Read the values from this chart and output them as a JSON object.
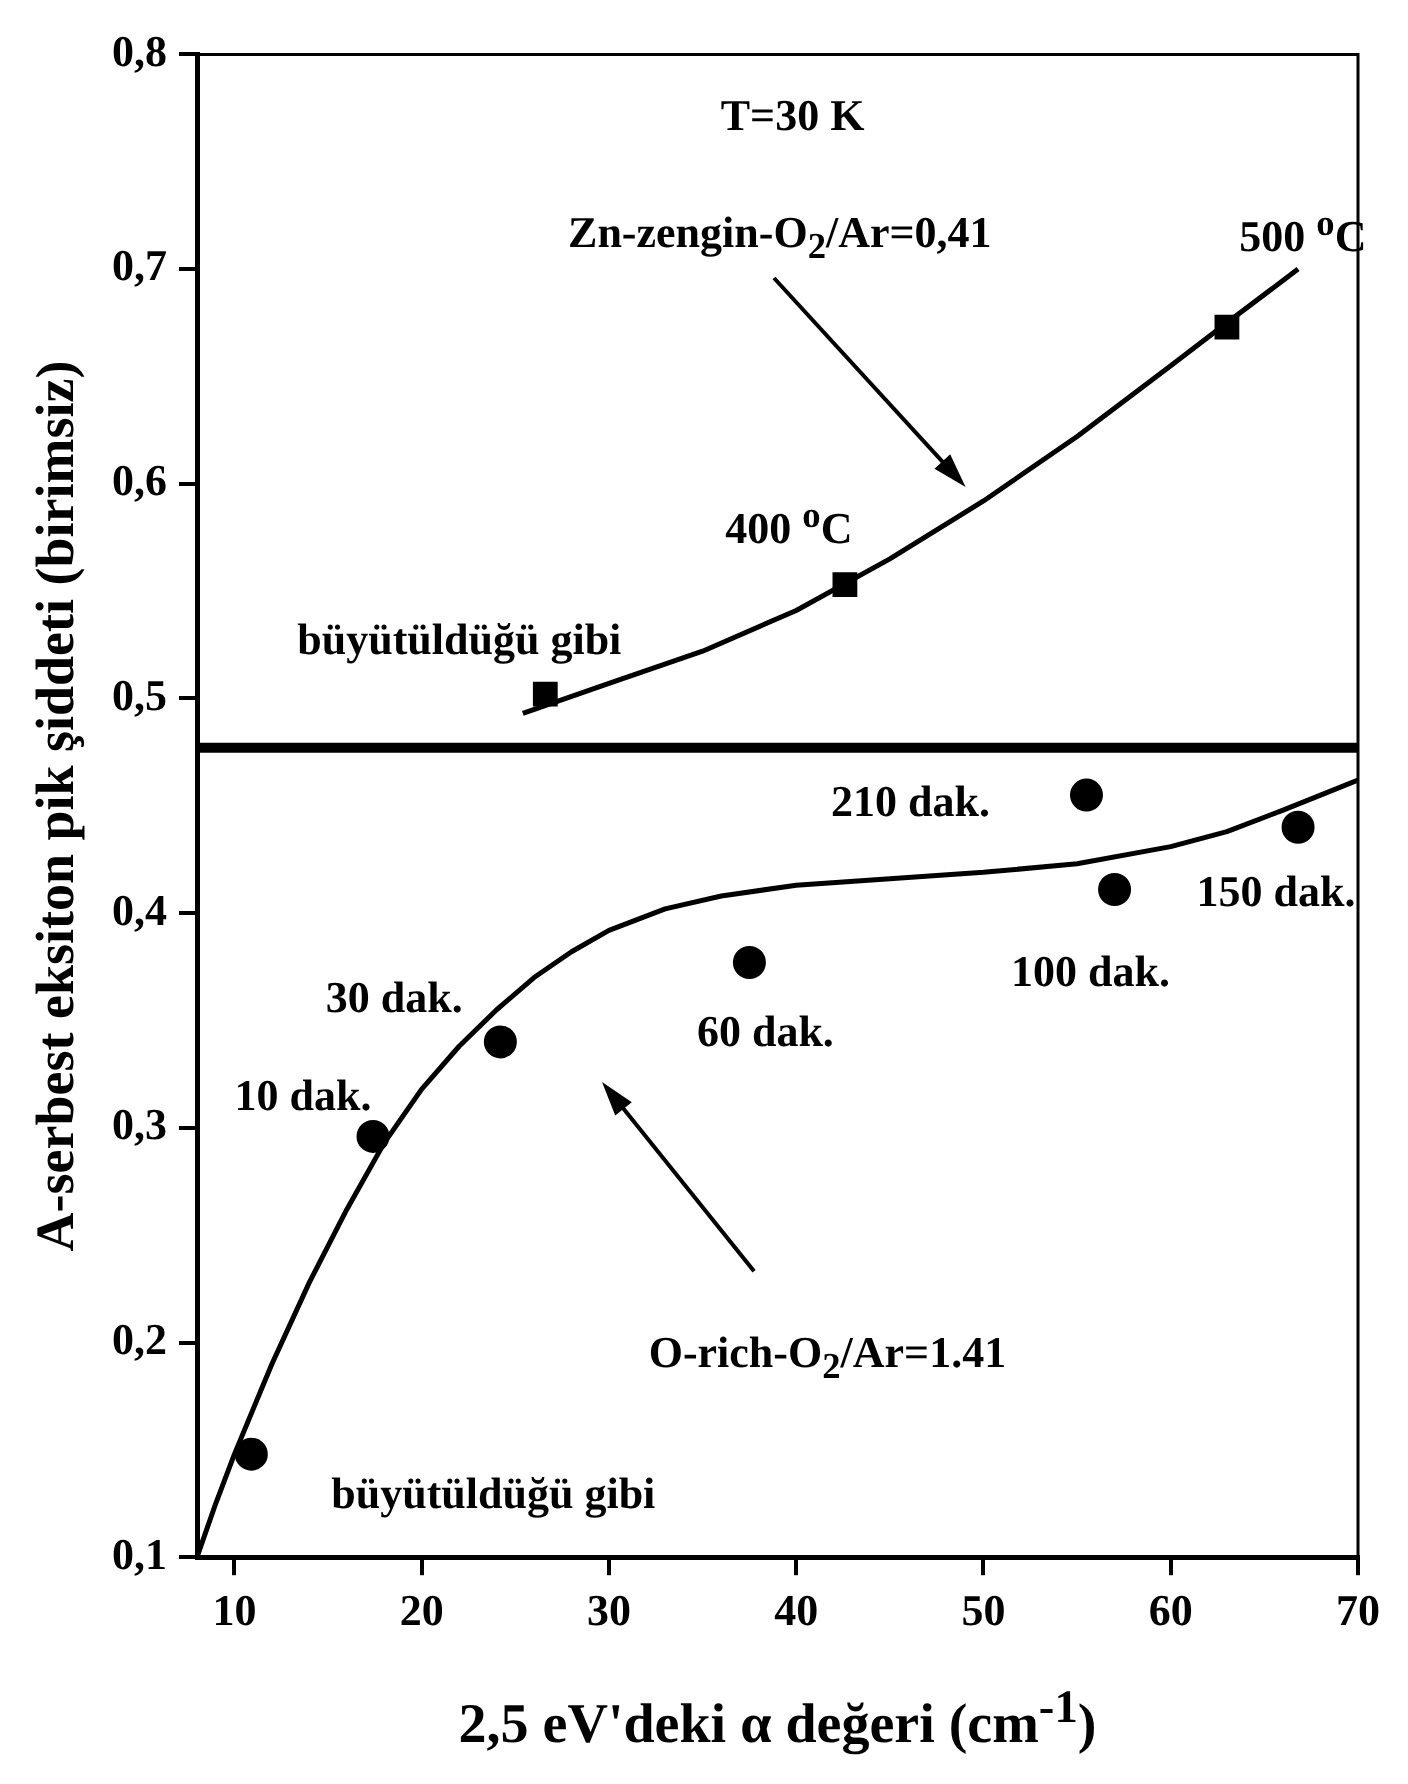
{
  "chart_data": {
    "type": "scatter",
    "xlabel": "2,5 eV'deki α değeri  (cm$^{-1}$)",
    "ylabel": "A-serbest eksiton pik şiddeti (birimsiz)",
    "xlim": [
      8,
      70
    ],
    "xticks": [
      10,
      20,
      30,
      40,
      50,
      60,
      70
    ],
    "ylim": [
      0.1,
      0.8
    ],
    "yticks": [
      {
        "value": 0.1,
        "label": "0,1"
      },
      {
        "value": 0.2,
        "label": "0,2"
      },
      {
        "value": 0.3,
        "label": "0,3"
      },
      {
        "value": 0.4,
        "label": "0,4"
      },
      {
        "value": 0.5,
        "label": "0,5"
      },
      {
        "value": 0.6,
        "label": "0,6"
      },
      {
        "value": 0.7,
        "label": "0,7"
      },
      {
        "value": 0.8,
        "label": "0,8"
      }
    ],
    "grid": false,
    "legend": false,
    "series": [
      {
        "type": "scatter",
        "marker": "square",
        "color": "#000000",
        "x": [
          26.6,
          42.6,
          63
        ],
        "values": [
          0.502,
          0.553,
          0.673
        ]
      },
      {
        "type": "scatter",
        "marker": "circle",
        "color": "#000000",
        "x": [
          10.9,
          17.4,
          24.2,
          37.5,
          55.5,
          57,
          66.8
        ],
        "values": [
          0.148,
          0.296,
          0.34,
          0.377,
          0.455,
          0.411,
          0.44
        ]
      },
      {
        "type": "line",
        "marker": "none",
        "color": "#000000",
        "x": [
          25.4,
          30,
          35,
          40,
          45,
          50,
          55,
          60,
          63,
          66.8
        ],
        "values": [
          0.493,
          0.507,
          0.522,
          0.541,
          0.565,
          0.592,
          0.622,
          0.655,
          0.675,
          0.7
        ]
      },
      {
        "type": "line",
        "marker": "none",
        "color": "#000000",
        "x": [
          8,
          9,
          10,
          12,
          14,
          16,
          18,
          20,
          22,
          24,
          26,
          28,
          30,
          33,
          36,
          40,
          45,
          50,
          55,
          60,
          63,
          66,
          68,
          70
        ],
        "values": [
          0.1,
          0.125,
          0.148,
          0.19,
          0.228,
          0.262,
          0.293,
          0.318,
          0.338,
          0.355,
          0.37,
          0.382,
          0.392,
          0.402,
          0.408,
          0.413,
          0.416,
          0.419,
          0.423,
          0.431,
          0.438,
          0.448,
          0.455,
          0.462
        ]
      }
    ],
    "ref_lines": [
      {
        "axis": "y",
        "value": 0.477,
        "color": "#000000"
      }
    ],
    "annotations": [
      "T=30 K",
      "Zn-zengin-O$_{2}$/Ar=0,41",
      {
        "text": "500 $^{o}$C",
        "x": 63,
        "y": 0.673
      },
      {
        "text": "400 $^{o}$C",
        "x": 42.6,
        "y": 0.553
      },
      {
        "text": "büyütüldüğü gibi",
        "x": 26.6,
        "y": 0.502
      },
      {
        "text": "210 dak.",
        "x": 55.5,
        "y": 0.455
      },
      {
        "text": "150 dak.",
        "x": 66.8,
        "y": 0.44
      },
      {
        "text": "100 dak.",
        "x": 57,
        "y": 0.411
      },
      {
        "text": "60 dak.",
        "x": 37.5,
        "y": 0.377
      },
      {
        "text": "30 dak.",
        "x": 24.2,
        "y": 0.34
      },
      {
        "text": "10 dak.",
        "x": 17.4,
        "y": 0.296
      },
      {
        "text": "büyütüldüğü gibi",
        "x": 10.9,
        "y": 0.148
      },
      "O-rich-O$_{2}$/Ar=1.41"
    ]
  }
}
